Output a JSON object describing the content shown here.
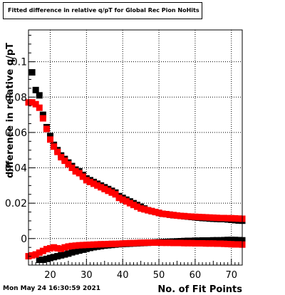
{
  "title": "Fitted difference in relative q/pT for Global Rec Pion NoHits",
  "timestamp": "Mon May 24 16:30:59 2021",
  "colors": {
    "series_black": "#000000",
    "series_red": "#ff0000",
    "frame": "#000000",
    "grid": "#000000"
  },
  "chart_data": {
    "type": "scatter",
    "xlabel": "No. of Fit Points",
    "ylabel": "difference in relative q/pT",
    "xlim": [
      14,
      73
    ],
    "ylim": [
      -0.015,
      0.118
    ],
    "grid": true,
    "x_ticks": [
      {
        "value": 20,
        "label": "20"
      },
      {
        "value": 30,
        "label": "30"
      },
      {
        "value": 40,
        "label": "40"
      },
      {
        "value": 50,
        "label": "50"
      },
      {
        "value": 60,
        "label": "60"
      },
      {
        "value": 70,
        "label": "70"
      }
    ],
    "y_ticks": [
      {
        "value": 0,
        "label": "0"
      },
      {
        "value": 0.02,
        "label": "0.02"
      },
      {
        "value": 0.04,
        "label": "0.04"
      },
      {
        "value": 0.06,
        "label": "0.06"
      },
      {
        "value": 0.08,
        "label": "0.08"
      },
      {
        "value": 0.1,
        "label": "0.1"
      }
    ],
    "series": [
      {
        "color": "#000000",
        "points": [
          [
            15,
            0.094
          ],
          [
            16,
            0.084
          ],
          [
            17,
            0.081
          ],
          [
            18,
            0.07
          ],
          [
            19,
            0.063
          ],
          [
            20,
            0.058
          ],
          [
            21,
            0.053
          ],
          [
            22,
            0.05
          ],
          [
            23,
            0.047
          ],
          [
            24,
            0.045
          ],
          [
            25,
            0.043
          ],
          [
            26,
            0.041
          ],
          [
            27,
            0.039
          ],
          [
            28,
            0.038
          ],
          [
            29,
            0.036
          ],
          [
            30,
            0.034
          ],
          [
            31,
            0.033
          ],
          [
            32,
            0.032
          ],
          [
            33,
            0.031
          ],
          [
            34,
            0.03
          ],
          [
            35,
            0.029
          ],
          [
            36,
            0.028
          ],
          [
            37,
            0.027
          ],
          [
            38,
            0.026
          ],
          [
            39,
            0.024
          ],
          [
            40,
            0.023
          ],
          [
            41,
            0.022
          ],
          [
            42,
            0.021
          ],
          [
            43,
            0.02
          ],
          [
            44,
            0.019
          ],
          [
            45,
            0.018
          ],
          [
            46,
            0.017
          ],
          [
            47,
            0.016
          ],
          [
            48,
            0.0155
          ],
          [
            49,
            0.015
          ],
          [
            50,
            0.0145
          ],
          [
            51,
            0.014
          ],
          [
            52,
            0.0138
          ],
          [
            53,
            0.0135
          ],
          [
            54,
            0.0132
          ],
          [
            55,
            0.013
          ],
          [
            56,
            0.0128
          ],
          [
            57,
            0.0126
          ],
          [
            58,
            0.0124
          ],
          [
            59,
            0.0122
          ],
          [
            60,
            0.012
          ],
          [
            61,
            0.0118
          ],
          [
            62,
            0.0116
          ],
          [
            63,
            0.0115
          ],
          [
            64,
            0.0113
          ],
          [
            65,
            0.0112
          ],
          [
            66,
            0.0111
          ],
          [
            67,
            0.011
          ],
          [
            68,
            0.011
          ],
          [
            69,
            0.0108
          ],
          [
            70,
            0.0106
          ],
          [
            71,
            0.0104
          ],
          [
            72,
            0.0102
          ],
          [
            73,
            0.0101
          ]
        ]
      },
      {
        "color": "#ff0000",
        "points": [
          [
            14,
            0.077
          ],
          [
            15,
            0.077
          ],
          [
            16,
            0.076
          ],
          [
            17,
            0.074
          ],
          [
            18,
            0.068
          ],
          [
            19,
            0.062
          ],
          [
            20,
            0.056
          ],
          [
            21,
            0.052
          ],
          [
            22,
            0.049
          ],
          [
            23,
            0.046
          ],
          [
            24,
            0.044
          ],
          [
            25,
            0.042
          ],
          [
            26,
            0.04
          ],
          [
            27,
            0.038
          ],
          [
            28,
            0.037
          ],
          [
            29,
            0.035
          ],
          [
            30,
            0.033
          ],
          [
            31,
            0.032
          ],
          [
            32,
            0.031
          ],
          [
            33,
            0.03
          ],
          [
            34,
            0.029
          ],
          [
            35,
            0.028
          ],
          [
            36,
            0.027
          ],
          [
            37,
            0.026
          ],
          [
            38,
            0.025
          ],
          [
            39,
            0.023
          ],
          [
            40,
            0.022
          ],
          [
            41,
            0.021
          ],
          [
            42,
            0.02
          ],
          [
            43,
            0.019
          ],
          [
            44,
            0.018
          ],
          [
            45,
            0.017
          ],
          [
            46,
            0.0165
          ],
          [
            47,
            0.016
          ],
          [
            48,
            0.0155
          ],
          [
            49,
            0.015
          ],
          [
            50,
            0.0145
          ],
          [
            51,
            0.014
          ],
          [
            52,
            0.0138
          ],
          [
            53,
            0.0135
          ],
          [
            54,
            0.0133
          ],
          [
            55,
            0.013
          ],
          [
            56,
            0.0128
          ],
          [
            57,
            0.0127
          ],
          [
            58,
            0.0125
          ],
          [
            59,
            0.0124
          ],
          [
            60,
            0.0123
          ],
          [
            61,
            0.0122
          ],
          [
            62,
            0.0121
          ],
          [
            63,
            0.012
          ],
          [
            64,
            0.0119
          ],
          [
            65,
            0.0118
          ],
          [
            66,
            0.0117
          ],
          [
            67,
            0.0116
          ],
          [
            68,
            0.0116
          ],
          [
            69,
            0.0115
          ],
          [
            70,
            0.0115
          ],
          [
            71,
            0.0114
          ],
          [
            72,
            0.0113
          ],
          [
            73,
            0.0112
          ]
        ]
      },
      {
        "color": "#000000",
        "points": [
          [
            17,
            -0.012
          ],
          [
            18,
            -0.012
          ],
          [
            19,
            -0.0115
          ],
          [
            20,
            -0.011
          ],
          [
            21,
            -0.0105
          ],
          [
            22,
            -0.01
          ],
          [
            23,
            -0.0095
          ],
          [
            24,
            -0.009
          ],
          [
            25,
            -0.0085
          ],
          [
            26,
            -0.0078
          ],
          [
            27,
            -0.0073
          ],
          [
            28,
            -0.0068
          ],
          [
            29,
            -0.0063
          ],
          [
            30,
            -0.0058
          ],
          [
            31,
            -0.0053
          ],
          [
            32,
            -0.0049
          ],
          [
            33,
            -0.0046
          ],
          [
            34,
            -0.0043
          ],
          [
            35,
            -0.004
          ],
          [
            36,
            -0.0038
          ],
          [
            37,
            -0.0036
          ],
          [
            38,
            -0.0034
          ],
          [
            39,
            -0.0032
          ],
          [
            40,
            -0.0031
          ],
          [
            41,
            -0.003
          ],
          [
            42,
            -0.0029
          ],
          [
            43,
            -0.0028
          ],
          [
            44,
            -0.0027
          ],
          [
            45,
            -0.0026
          ],
          [
            46,
            -0.0025
          ],
          [
            47,
            -0.0024
          ],
          [
            48,
            -0.0023
          ],
          [
            49,
            -0.0022
          ],
          [
            50,
            -0.0021
          ],
          [
            51,
            -0.002
          ],
          [
            52,
            -0.0019
          ],
          [
            53,
            -0.0018
          ],
          [
            54,
            -0.0017
          ],
          [
            55,
            -0.0016
          ],
          [
            56,
            -0.0015
          ],
          [
            57,
            -0.0014
          ],
          [
            58,
            -0.0013
          ],
          [
            59,
            -0.0013
          ],
          [
            60,
            -0.0012
          ],
          [
            61,
            -0.0012
          ],
          [
            62,
            -0.0011
          ],
          [
            63,
            -0.0011
          ],
          [
            64,
            -0.0011
          ],
          [
            65,
            -0.001
          ],
          [
            66,
            -0.001
          ],
          [
            67,
            -0.001
          ],
          [
            68,
            -0.0009
          ],
          [
            69,
            -0.0008
          ],
          [
            70,
            -0.0008
          ],
          [
            71,
            -0.0008
          ],
          [
            72,
            -0.0009
          ],
          [
            73,
            -0.001
          ]
        ]
      },
      {
        "color": "#ff0000",
        "points": [
          [
            14,
            -0.01
          ],
          [
            15,
            -0.0095
          ],
          [
            16,
            -0.009
          ],
          [
            17,
            -0.008
          ],
          [
            18,
            -0.007
          ],
          [
            19,
            -0.006
          ],
          [
            20,
            -0.0055
          ],
          [
            21,
            -0.005
          ],
          [
            22,
            -0.0055
          ],
          [
            23,
            -0.0058
          ],
          [
            24,
            -0.005
          ],
          [
            25,
            -0.0045
          ],
          [
            26,
            -0.0042
          ],
          [
            27,
            -0.004
          ],
          [
            28,
            -0.0038
          ],
          [
            29,
            -0.0037
          ],
          [
            30,
            -0.0036
          ],
          [
            31,
            -0.0035
          ],
          [
            32,
            -0.0034
          ],
          [
            33,
            -0.0033
          ],
          [
            34,
            -0.0032
          ],
          [
            35,
            -0.0032
          ],
          [
            36,
            -0.0031
          ],
          [
            37,
            -0.003
          ],
          [
            38,
            -0.003
          ],
          [
            39,
            -0.0029
          ],
          [
            40,
            -0.0028
          ],
          [
            41,
            -0.0027
          ],
          [
            42,
            -0.0026
          ],
          [
            43,
            -0.0026
          ],
          [
            44,
            -0.0025
          ],
          [
            45,
            -0.0024
          ],
          [
            46,
            -0.0024
          ],
          [
            47,
            -0.0023
          ],
          [
            48,
            -0.0023
          ],
          [
            49,
            -0.0023
          ],
          [
            50,
            -0.0023
          ],
          [
            51,
            -0.0024
          ],
          [
            52,
            -0.0024
          ],
          [
            53,
            -0.0024
          ],
          [
            54,
            -0.0025
          ],
          [
            55,
            -0.0025
          ],
          [
            56,
            -0.0025
          ],
          [
            57,
            -0.0026
          ],
          [
            58,
            -0.0026
          ],
          [
            59,
            -0.0026
          ],
          [
            60,
            -0.0027
          ],
          [
            61,
            -0.0027
          ],
          [
            62,
            -0.0027
          ],
          [
            63,
            -0.0028
          ],
          [
            64,
            -0.0028
          ],
          [
            65,
            -0.0028
          ],
          [
            66,
            -0.0029
          ],
          [
            67,
            -0.0029
          ],
          [
            68,
            -0.003
          ],
          [
            69,
            -0.0031
          ],
          [
            70,
            -0.0032
          ],
          [
            71,
            -0.0033
          ],
          [
            72,
            -0.0033
          ],
          [
            73,
            -0.0034
          ]
        ]
      }
    ]
  }
}
